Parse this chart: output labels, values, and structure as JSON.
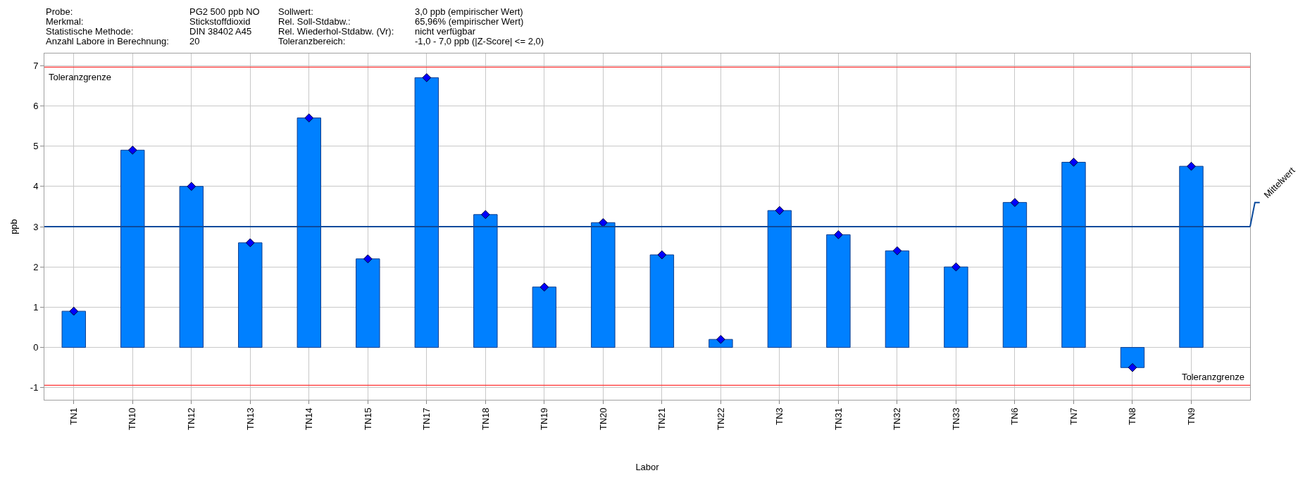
{
  "chart_data": {
    "type": "bar",
    "categories": [
      "TN1",
      "TN10",
      "TN12",
      "TN13",
      "TN14",
      "TN15",
      "TN17",
      "TN18",
      "TN19",
      "TN20",
      "TN21",
      "TN22",
      "TN3",
      "TN31",
      "TN32",
      "TN33",
      "TN6",
      "TN7",
      "TN8",
      "TN9"
    ],
    "series": [
      {
        "color": "#0080ff",
        "values": [
          0.9,
          4.9,
          4.0,
          2.6,
          5.7,
          2.2,
          6.7,
          3.3,
          1.5,
          3.1,
          2.3,
          0.2,
          3.4,
          2.8,
          2.4,
          2.0,
          3.6,
          4.6,
          -0.5,
          4.5
        ]
      },
      {
        "type": "scatter",
        "color": "#0000ff",
        "marker": "diamond",
        "x": [
          "TN1",
          "TN10",
          "TN12",
          "TN13",
          "TN14",
          "TN15",
          "TN17",
          "TN18",
          "TN19",
          "TN20",
          "TN21",
          "TN22",
          "TN3",
          "TN31",
          "TN32",
          "TN33",
          "TN6",
          "TN7",
          "TN8",
          "TN9"
        ],
        "values": [
          0.9,
          4.9,
          4.0,
          2.6,
          5.7,
          2.2,
          6.7,
          3.3,
          1.5,
          3.1,
          2.3,
          0.2,
          3.4,
          2.8,
          2.4,
          2.0,
          3.6,
          4.6,
          -0.5,
          4.5
        ]
      }
    ],
    "xlabel": "Labor",
    "ylabel": "ppb",
    "ylim": [
      -1.3,
      7.3
    ],
    "yticks": [
      -1,
      0,
      1,
      2,
      3,
      4,
      5,
      6,
      7
    ],
    "grid": true,
    "legend": false,
    "ref_lines": [
      {
        "axis": "y",
        "value": 6.96,
        "label": "Toleranzgrenze",
        "color": "#ff3333"
      },
      {
        "axis": "y",
        "value": -0.94,
        "label": "Toleranzgrenze",
        "color": "#ff3333"
      },
      {
        "axis": "y",
        "value": 3.0,
        "label": "Mittelwert",
        "color": "#0b4a9c"
      }
    ],
    "annotations": [
      "Probe:",
      "Merkmal:",
      "Statistische Methode:",
      "Anzahl Labore in Berechnung:",
      "PG2 500 ppb NO",
      "Stickstoffdioxid",
      "DIN 38402 A45",
      "20",
      "Sollwert:",
      "Rel. Soll-Stdabw.:",
      "Rel. Wiederhol-Stdabw. (Vr):",
      "Toleranzbereich:",
      "3,0 ppb (empirischer Wert)",
      "65,96% (empirischer Wert)",
      "nicht verfügbar",
      "-1,0 - 7,0 ppb (|Z-Score| <= 2,0)"
    ]
  }
}
